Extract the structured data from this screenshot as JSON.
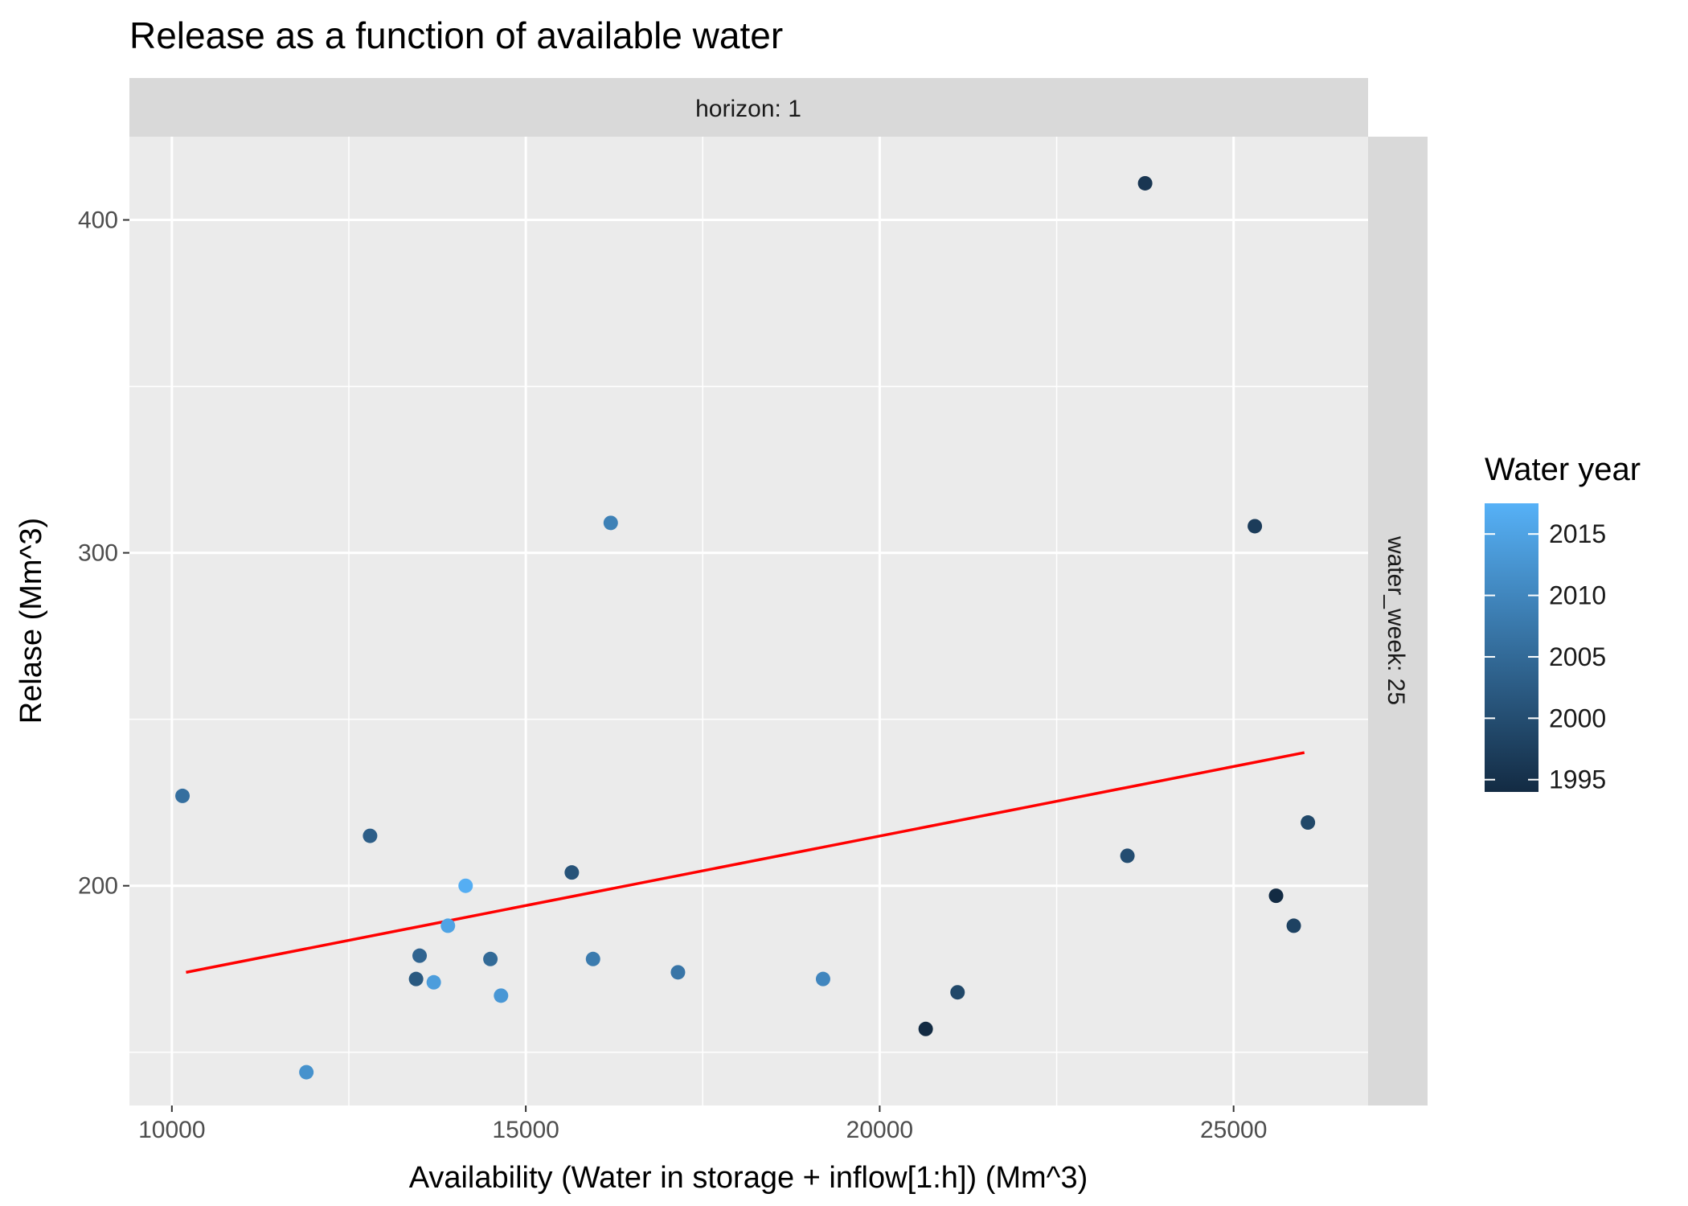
{
  "chart_data": {
    "type": "scatter",
    "title": "Release as a function of available water",
    "xlabel": "Availability (Water in storage + inflow[1:h]) (Mm^3)",
    "ylabel": "Relase (Mm^3)",
    "facet_top": "horizon: 1",
    "facet_right": "water_week: 25",
    "xlim": [
      9400,
      26900
    ],
    "ylim": [
      134,
      425
    ],
    "x_ticks": [
      10000,
      15000,
      20000,
      25000
    ],
    "y_ticks": [
      200,
      300,
      400
    ],
    "x_tick_labels": [
      "10000",
      "15000",
      "20000",
      "25000"
    ],
    "y_tick_labels": [
      "200",
      "300",
      "400"
    ],
    "x_minor": [
      12500,
      17500,
      22500
    ],
    "y_minor": [
      150,
      250,
      350
    ],
    "grid": true,
    "legend": {
      "title": "Water year",
      "placement": "right",
      "range": [
        1994,
        2017.5
      ],
      "ticks": [
        1995,
        2000,
        2005,
        2010,
        2015
      ],
      "tick_labels": [
        "1995",
        "2000",
        "2005",
        "2010",
        "2015"
      ],
      "color_low": "#132B43",
      "color_high": "#56B1F7"
    },
    "points": [
      {
        "x": 10150,
        "y": 227,
        "year": 2006
      },
      {
        "x": 11900,
        "y": 144,
        "year": 2012
      },
      {
        "x": 12800,
        "y": 215,
        "year": 2003
      },
      {
        "x": 13450,
        "y": 172,
        "year": 2002
      },
      {
        "x": 13500,
        "y": 179,
        "year": 2004
      },
      {
        "x": 13700,
        "y": 171,
        "year": 2014
      },
      {
        "x": 13900,
        "y": 188,
        "year": 2015
      },
      {
        "x": 14150,
        "y": 200,
        "year": 2017
      },
      {
        "x": 14500,
        "y": 178,
        "year": 2005
      },
      {
        "x": 14650,
        "y": 167,
        "year": 2013
      },
      {
        "x": 15650,
        "y": 204,
        "year": 2001
      },
      {
        "x": 15950,
        "y": 178,
        "year": 2008
      },
      {
        "x": 16200,
        "y": 309,
        "year": 2009
      },
      {
        "x": 17150,
        "y": 174,
        "year": 2007
      },
      {
        "x": 19200,
        "y": 172,
        "year": 2010
      },
      {
        "x": 20650,
        "y": 157,
        "year": 1994
      },
      {
        "x": 21100,
        "y": 168,
        "year": 1999
      },
      {
        "x": 23500,
        "y": 209,
        "year": 2000
      },
      {
        "x": 23750,
        "y": 411,
        "year": 1996
      },
      {
        "x": 25300,
        "y": 308,
        "year": 1997
      },
      {
        "x": 25600,
        "y": 197,
        "year": 1994
      },
      {
        "x": 25850,
        "y": 188,
        "year": 1998
      },
      {
        "x": 26050,
        "y": 219,
        "year": 1999
      }
    ],
    "fit_line": {
      "color": "#ff0000",
      "x": [
        10200,
        26000
      ],
      "y": [
        174,
        240
      ]
    }
  }
}
